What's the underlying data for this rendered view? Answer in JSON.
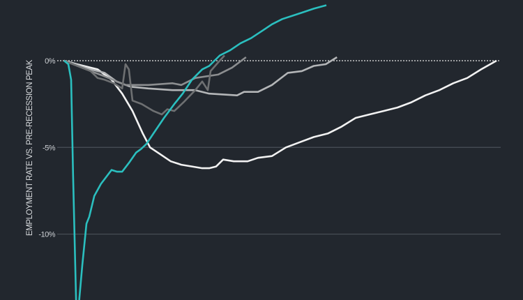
{
  "chart_data": {
    "type": "line",
    "title": "",
    "xlabel": "",
    "ylabel": "EMPLOYMENT RATE VS. PRE-RECESSION PEAK",
    "xlim": [
      0,
      77.5
    ],
    "ylim": [
      -13.8,
      3.5
    ],
    "grid": true,
    "yticks": [
      {
        "value": 0,
        "label": "0%",
        "style": "dotted"
      },
      {
        "value": -5,
        "label": "-5%",
        "style": "solid"
      },
      {
        "value": -10,
        "label": "-10%",
        "style": "solid"
      }
    ],
    "series": [
      {
        "color": "#f2f2f2",
        "points": [
          [
            0,
            0
          ],
          [
            2.25,
            -0.2
          ],
          [
            6,
            -0.5
          ],
          [
            8.5,
            -1.1
          ],
          [
            10.4,
            -1.9
          ],
          [
            12.25,
            -2.9
          ],
          [
            14.1,
            -4.2
          ],
          [
            15.4,
            -5.0
          ],
          [
            17.25,
            -5.4
          ],
          [
            19.1,
            -5.8
          ],
          [
            21,
            -6.0
          ],
          [
            22.9,
            -6.1
          ],
          [
            24.75,
            -6.2
          ],
          [
            26,
            -6.2
          ],
          [
            27.25,
            -6.1
          ],
          [
            28.5,
            -5.7
          ],
          [
            30.4,
            -5.8
          ],
          [
            32.9,
            -5.8
          ],
          [
            34.75,
            -5.6
          ],
          [
            37.25,
            -5.5
          ],
          [
            39.75,
            -5.0
          ],
          [
            42.25,
            -4.7
          ],
          [
            44.75,
            -4.4
          ],
          [
            47.25,
            -4.2
          ],
          [
            49.75,
            -3.8
          ],
          [
            52.25,
            -3.3
          ],
          [
            54.75,
            -3.1
          ],
          [
            57.25,
            -2.9
          ],
          [
            59.75,
            -2.7
          ],
          [
            62.25,
            -2.4
          ],
          [
            64.75,
            -2.0
          ],
          [
            67.25,
            -1.7
          ],
          [
            69.75,
            -1.3
          ],
          [
            72.25,
            -1.0
          ],
          [
            74.75,
            -0.5
          ],
          [
            77.5,
            0
          ]
        ]
      },
      {
        "color": "#b4b6b8",
        "points": [
          [
            0,
            0
          ],
          [
            4.75,
            -0.5
          ],
          [
            7.25,
            -0.7
          ],
          [
            9.4,
            -1.2
          ],
          [
            11.9,
            -1.5
          ],
          [
            15.1,
            -1.6
          ],
          [
            19.4,
            -1.7
          ],
          [
            23.5,
            -1.7
          ],
          [
            26,
            -1.9
          ],
          [
            31,
            -2.0
          ],
          [
            32.25,
            -1.8
          ],
          [
            34.75,
            -1.8
          ],
          [
            37.25,
            -1.4
          ],
          [
            40.1,
            -0.7
          ],
          [
            42.6,
            -0.6
          ],
          [
            44.75,
            -0.3
          ],
          [
            46.9,
            -0.2
          ],
          [
            48.9,
            0.2
          ]
        ]
      },
      {
        "color": "#8c8e90",
        "points": [
          [
            0,
            0
          ],
          [
            4.75,
            -0.6
          ],
          [
            7.25,
            -0.9
          ],
          [
            11,
            -1.4
          ],
          [
            15.1,
            -1.4
          ],
          [
            19.4,
            -1.3
          ],
          [
            21,
            -1.4
          ],
          [
            23.5,
            -1.0
          ],
          [
            27.6,
            -0.8
          ],
          [
            30.1,
            -0.4
          ],
          [
            32.6,
            0.2
          ]
        ]
      },
      {
        "color": "#6e7072",
        "points": [
          [
            0,
            0
          ],
          [
            4.75,
            -0.6
          ],
          [
            6,
            -1.0
          ],
          [
            7.25,
            -1.1
          ],
          [
            8.9,
            -1.3
          ],
          [
            10.4,
            -1.6
          ],
          [
            11,
            -0.2
          ],
          [
            11.6,
            -0.5
          ],
          [
            12.25,
            -2.3
          ],
          [
            13.9,
            -2.5
          ],
          [
            16,
            -2.9
          ],
          [
            17.5,
            -3.1
          ],
          [
            18.5,
            -2.8
          ],
          [
            19.75,
            -2.9
          ],
          [
            21.4,
            -2.4
          ],
          [
            23.5,
            -1.7
          ],
          [
            24.75,
            -1.2
          ],
          [
            25.75,
            -1.7
          ],
          [
            26.25,
            -0.6
          ],
          [
            27.6,
            -0.1
          ],
          [
            28.75,
            0.3
          ]
        ]
      },
      {
        "color": "#2bbfbf",
        "points": [
          [
            0,
            0
          ],
          [
            0.75,
            -0.2
          ],
          [
            1.25,
            -1.1
          ],
          [
            1.6,
            -6.6
          ],
          [
            2.2,
            -14.7
          ],
          [
            2.5,
            -14.5
          ],
          [
            3.25,
            -11.8
          ],
          [
            4,
            -9.4
          ],
          [
            4.5,
            -9.0
          ],
          [
            5.4,
            -7.8
          ],
          [
            6.6,
            -7.1
          ],
          [
            8.5,
            -6.3
          ],
          [
            9.5,
            -6.4
          ],
          [
            10.4,
            -6.4
          ],
          [
            11.6,
            -5.9
          ],
          [
            12.9,
            -5.3
          ],
          [
            13.75,
            -5.1
          ],
          [
            14.75,
            -4.8
          ],
          [
            16,
            -4.2
          ],
          [
            17.9,
            -3.3
          ],
          [
            19.75,
            -2.5
          ],
          [
            21.25,
            -1.9
          ],
          [
            22.9,
            -1.1
          ],
          [
            24.75,
            -0.5
          ],
          [
            26,
            -0.3
          ],
          [
            27.9,
            0.3
          ],
          [
            29.75,
            0.6
          ],
          [
            31.6,
            1.0
          ],
          [
            33.5,
            1.3
          ],
          [
            35.4,
            1.7
          ],
          [
            37.25,
            2.1
          ],
          [
            39.1,
            2.4
          ],
          [
            41,
            2.6
          ],
          [
            42.9,
            2.8
          ],
          [
            44.75,
            3.0
          ],
          [
            47,
            3.2
          ]
        ]
      }
    ]
  }
}
